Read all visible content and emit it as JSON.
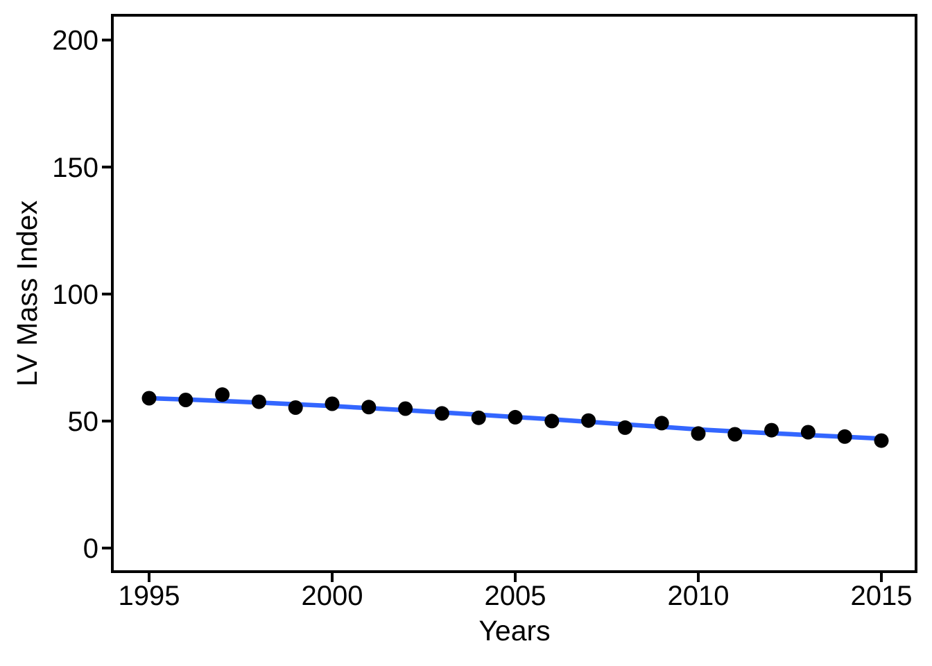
{
  "chart_data": {
    "type": "scatter",
    "title": "",
    "xlabel": "Years",
    "ylabel": "LV Mass Index",
    "x": [
      1995,
      1996,
      1997,
      1998,
      1999,
      2000,
      2001,
      2002,
      2003,
      2004,
      2005,
      2006,
      2007,
      2008,
      2009,
      2010,
      2011,
      2012,
      2013,
      2014,
      2015
    ],
    "series": [
      {
        "name": "observed-points",
        "type": "points",
        "color": "#000000",
        "values": [
          59.0,
          58.3,
          60.4,
          57.6,
          55.3,
          56.8,
          55.5,
          54.9,
          53.0,
          51.3,
          51.5,
          50.0,
          50.2,
          47.4,
          49.2,
          45.1,
          44.8,
          46.4,
          45.6,
          43.9,
          42.3
        ]
      },
      {
        "name": "smooth-trend-line",
        "type": "line",
        "color": "#3366FF",
        "values": [
          59.0,
          58.5,
          57.9,
          57.3,
          56.6,
          55.9,
          55.1,
          54.3,
          53.4,
          52.5,
          51.6,
          50.7,
          49.7,
          48.7,
          47.7,
          46.7,
          45.9,
          45.2,
          44.5,
          43.8,
          43.1
        ]
      }
    ],
    "xticks": [
      1995,
      2000,
      2005,
      2010,
      2015
    ],
    "yticks": [
      0,
      50,
      100,
      150,
      200
    ],
    "xlim": [
      1994,
      2016
    ],
    "ylim": [
      -10,
      210
    ],
    "grid": false,
    "legend": "none",
    "panel_border_color": "#000000",
    "background_color": "#FFFFFF",
    "text_color": "#000000"
  }
}
